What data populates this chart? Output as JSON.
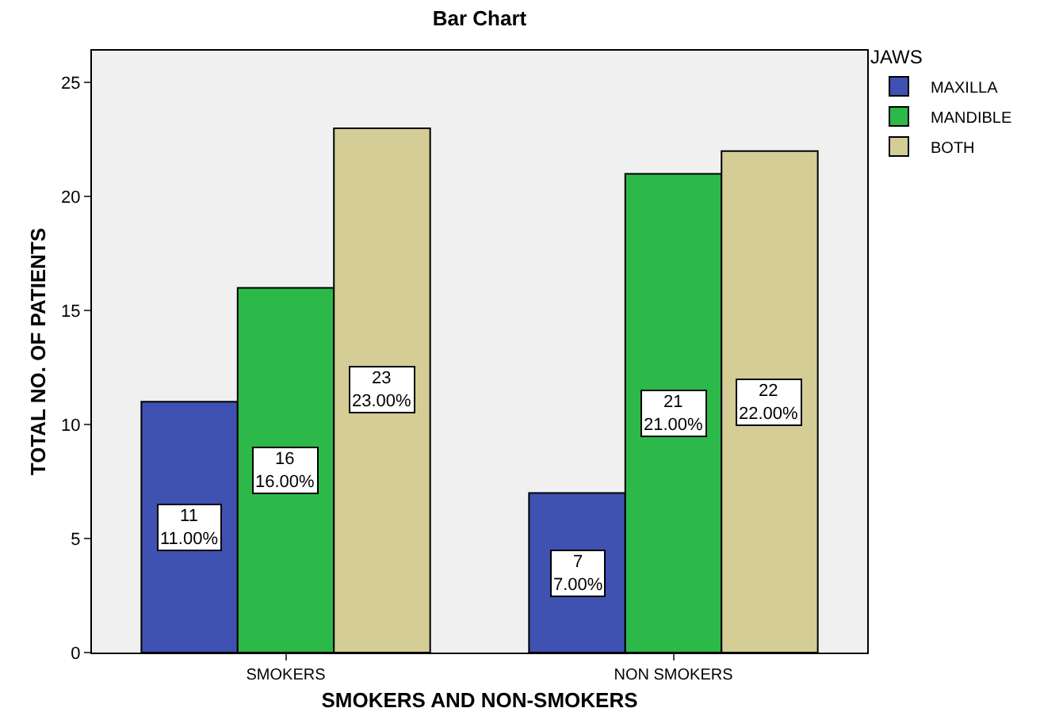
{
  "chart_data": {
    "type": "bar",
    "title": "Bar Chart",
    "xlabel": "SMOKERS AND NON-SMOKERS",
    "ylabel": "TOTAL NO. OF PATIENTS",
    "legend_title": "JAWS",
    "categories": [
      "SMOKERS",
      "NON SMOKERS"
    ],
    "series": [
      {
        "name": "MAXILLA",
        "color": "#3f51b1",
        "values": [
          11,
          7
        ],
        "value_labels": [
          "11\n11.00%",
          "7\n7.00%"
        ]
      },
      {
        "name": "MANDIBLE",
        "color": "#2db84a",
        "values": [
          16,
          21
        ],
        "value_labels": [
          "16\n16.00%",
          "21\n21.00%"
        ]
      },
      {
        "name": "BOTH",
        "color": "#d4cd96",
        "values": [
          23,
          22
        ],
        "value_labels": [
          "23\n23.00%",
          "22\n22.00%"
        ]
      }
    ],
    "ylim": [
      0,
      26.4
    ],
    "yticks": [
      0,
      5,
      10,
      15,
      20,
      25
    ],
    "grid": false,
    "legend": "top right"
  }
}
